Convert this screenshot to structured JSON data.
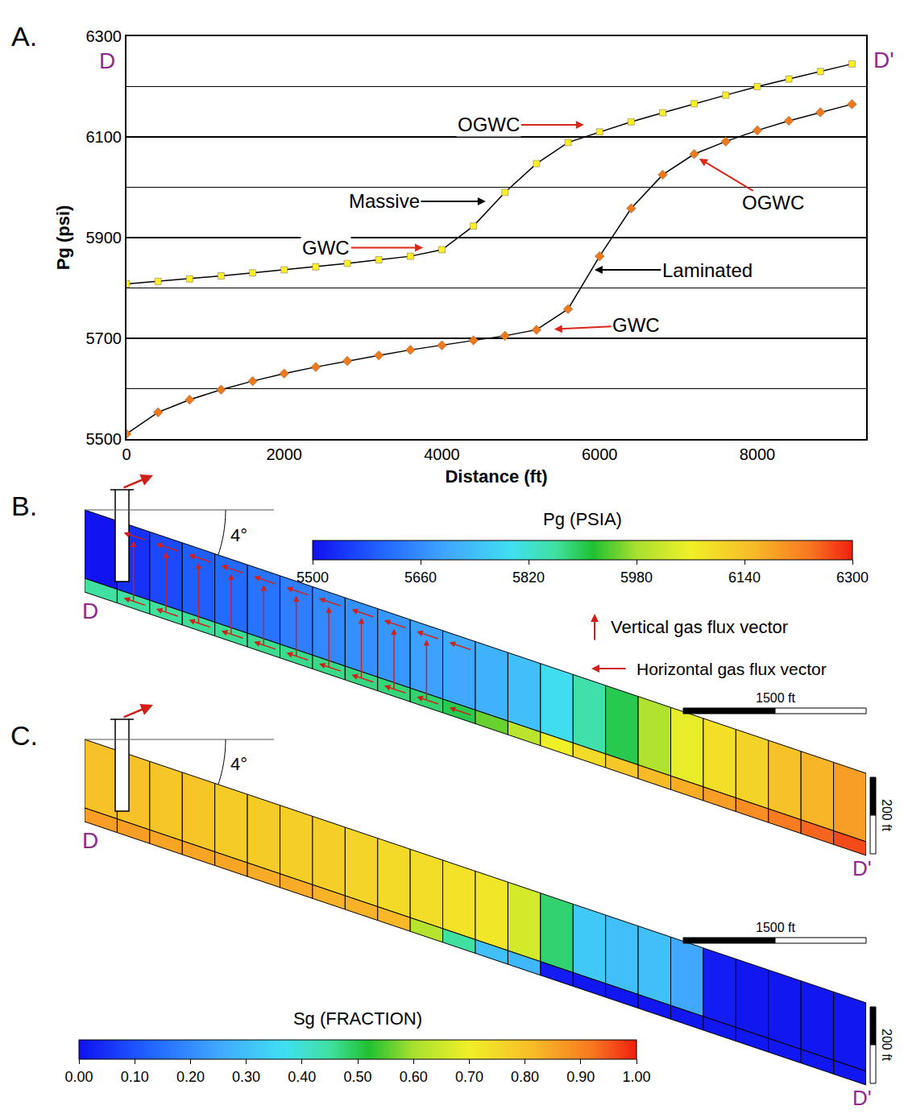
{
  "chart_data": [
    {
      "panel": "A.",
      "type": "line",
      "x_label": "Distance (ft)",
      "y_label": "Pg (psi)",
      "start_label": "D",
      "end_label": "D'",
      "x": [
        0,
        400,
        800,
        1200,
        1600,
        2000,
        2400,
        2800,
        3200,
        3600,
        4000,
        4400,
        4800,
        5200,
        5600,
        6000,
        6400,
        6800,
        7200,
        7600,
        8000,
        8400,
        8800,
        9200
      ],
      "series": [
        {
          "name": "Massive",
          "color": "#ffee22",
          "marker": "square",
          "values": [
            5808,
            5813,
            5818,
            5824,
            5830,
            5836,
            5842,
            5849,
            5856,
            5863,
            5876,
            5923,
            5990,
            6047,
            6089,
            6110,
            6130,
            6148,
            6166,
            6183,
            6200,
            6215,
            6230,
            6245
          ],
          "label_at": {
            "x": 4556,
            "y": 5972,
            "text_x": 3269,
            "text_y": 5972
          }
        },
        {
          "name": "Laminated",
          "color": "#f07a1a",
          "marker": "diamond",
          "values": [
            5510,
            5553,
            5578,
            5598,
            5615,
            5630,
            5643,
            5655,
            5666,
            5677,
            5686,
            5696,
            5705,
            5717,
            5758,
            5863,
            5958,
            6025,
            6066,
            6091,
            6113,
            6132,
            6149,
            6165
          ],
          "label_at": {
            "x": 5935,
            "y": 5836,
            "text_x": 7365,
            "text_y": 5836
          }
        }
      ],
      "annotations": [
        {
          "text": "OGWC",
          "x": 5802,
          "y": 6124,
          "text_x": 4597,
          "text_y": 6124,
          "color": "#d8281a"
        },
        {
          "text": "GWC",
          "x": 3760,
          "y": 5880,
          "text_x": 2533,
          "text_y": 5880,
          "color": "#d8281a"
        },
        {
          "text": "GWC",
          "x": 5424,
          "y": 5718,
          "text_x": 6466,
          "text_y": 5726,
          "color": "#d8281a"
        },
        {
          "text": "OGWC",
          "x": 7263,
          "y": 6057,
          "text_x": 8202,
          "text_y": 5969,
          "color": "#d8281a"
        }
      ],
      "xlim": [
        0,
        9380
      ],
      "xticks": [
        0,
        2000,
        4000,
        6000,
        8000
      ],
      "ylim": [
        5500,
        6300
      ],
      "yticks": [
        5500,
        5700,
        5900,
        6100,
        6300
      ],
      "minor_yticks": [
        5600,
        5800,
        6000,
        6200
      ],
      "grid": true
    },
    {
      "panel": "B.",
      "type": "cross_section",
      "start_label": "D",
      "end_label": "D'",
      "dip": "4°",
      "scale_x": "1500 ft",
      "scale_y": "200 ft",
      "cells": [
        [
          5505,
          5540,
          5570,
          5595,
          5610,
          5625,
          5640,
          5655,
          5665,
          5675,
          5690,
          5700,
          5715,
          5740,
          5790,
          5850,
          5900,
          5990,
          6050,
          6090,
          6110,
          6140,
          6160,
          6190
        ],
        [
          5860,
          5860,
          5862,
          5864,
          5866,
          5868,
          5870,
          5872,
          5875,
          5880,
          5885,
          5900,
          5950,
          6000,
          6060,
          6100,
          6130,
          6150,
          6170,
          6190,
          6210,
          6230,
          6250,
          6270
        ]
      ],
      "colorbar": {
        "title": "Pg (PSIA)",
        "range": [
          5500,
          6300
        ],
        "ticks": [
          5500,
          5660,
          5820,
          5980,
          6140,
          6300
        ]
      },
      "flux_legend": {
        "vertical": "Vertical gas flux vector",
        "horizontal": "Horizontal gas flux vector"
      }
    },
    {
      "panel": "C.",
      "type": "cross_section",
      "start_label": "D",
      "end_label": "D'",
      "dip": "4°",
      "scale_x": "1500 ft",
      "scale_y": "200 ft",
      "cells": [
        [
          0.8,
          0.8,
          0.79,
          0.79,
          0.78,
          0.78,
          0.77,
          0.77,
          0.76,
          0.75,
          0.74,
          0.73,
          0.72,
          0.66,
          0.48,
          0.32,
          0.3,
          0.3,
          0.25,
          0.02,
          0.01,
          0.01,
          0.01,
          0.01
        ],
        [
          0.86,
          0.86,
          0.85,
          0.85,
          0.85,
          0.84,
          0.84,
          0.83,
          0.83,
          0.82,
          0.62,
          0.45,
          0.3,
          0.28,
          0.02,
          0.01,
          0.01,
          0.01,
          0.01,
          0.01,
          0.01,
          0.01,
          0.01,
          0.01
        ]
      ],
      "colorbar": {
        "title": "Sg (FRACTION)",
        "range": [
          0,
          1
        ],
        "ticks": [
          {
            "value": 0,
            "label": "0.00"
          },
          {
            "value": 0.1,
            "label": "0.10"
          },
          {
            "value": 0.2,
            "label": "0.20"
          },
          {
            "value": 0.3,
            "label": "0.30"
          },
          {
            "value": 0.4,
            "label": "0.40"
          },
          {
            "value": 0.5,
            "label": "0.50"
          },
          {
            "value": 0.6,
            "label": "0.60"
          },
          {
            "value": 0.7,
            "label": "0.70"
          },
          {
            "value": 0.8,
            "label": "0.80"
          },
          {
            "value": 0.9,
            "label": "0.90"
          },
          {
            "value": 1,
            "label": "1.00"
          }
        ]
      }
    }
  ]
}
